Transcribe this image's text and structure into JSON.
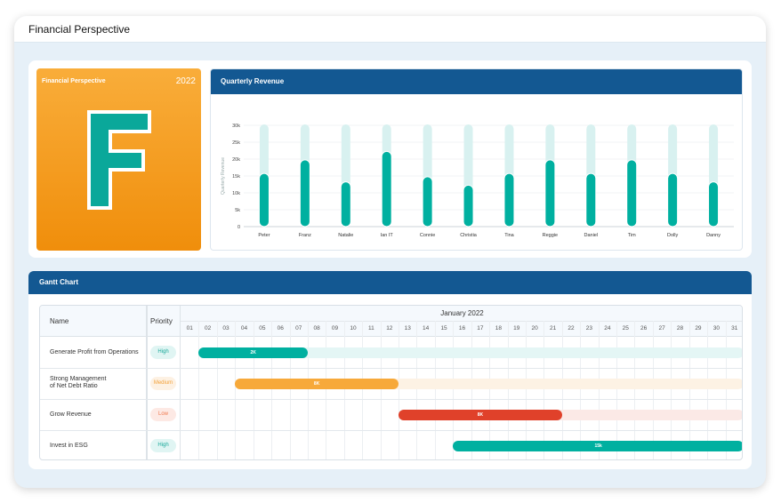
{
  "window": {
    "title": "Financial Perspective"
  },
  "logo_card": {
    "title": "Financial Perspective",
    "year": "2022",
    "letter": "F",
    "color": "#f5a020"
  },
  "revenue_panel": {
    "title": "Quarterly Revenue"
  },
  "chart_data": {
    "type": "bar",
    "title": "",
    "xlabel": "",
    "ylabel": "Quarterly Revenue",
    "ylim": [
      0,
      30000
    ],
    "yticks": [
      "0",
      "5k",
      "10k",
      "15k",
      "20k",
      "25k",
      "30k"
    ],
    "categories": [
      "Peter",
      "Franz",
      "Natalie",
      "Ian IT",
      "Connie",
      "Christia",
      "Tina",
      "Reggie",
      "Daniel",
      "Tim",
      "Dolly",
      "Danny"
    ],
    "values": [
      15500,
      19500,
      13000,
      22000,
      14500,
      12000,
      15500,
      19500,
      15500,
      19500,
      15500,
      13000
    ],
    "bar_color": "#00b0a0",
    "track_color": "#d8f1f0",
    "grid": true
  },
  "gantt": {
    "title": "Gantt Chart",
    "name_header": "Name",
    "priority_header": "Priority",
    "month": "January 2022",
    "days": [
      "01",
      "02",
      "03",
      "04",
      "05",
      "06",
      "07",
      "08",
      "09",
      "10",
      "11",
      "12",
      "13",
      "14",
      "15",
      "16",
      "17",
      "18",
      "19",
      "20",
      "21",
      "22",
      "23",
      "24",
      "25",
      "26",
      "27",
      "28",
      "29",
      "30",
      "31"
    ],
    "rows": [
      {
        "name": "Generate Profit from Operations",
        "priority": "High",
        "label": "2K",
        "start": 2,
        "end": 7,
        "color": "#00b0a0",
        "track": "#e4f6f5",
        "pill_bg": "#e0f5f3",
        "pill_fg": "#1aa89a"
      },
      {
        "name": "Strong Management of Net Debt Ratio",
        "priority": "Medium",
        "label": "8K",
        "start": 4,
        "end": 12,
        "color": "#f7a93a",
        "track": "#fdf2e4",
        "pill_bg": "#fdf1e3",
        "pill_fg": "#f2a13a"
      },
      {
        "name": "Grow Revenue",
        "priority": "Low",
        "label": "8K",
        "start": 13,
        "end": 21,
        "color": "#e0412a",
        "track": "#fbe9e6",
        "pill_bg": "#fde9e4",
        "pill_fg": "#f07a50"
      },
      {
        "name": "Invest in ESG",
        "priority": "High",
        "label": "15k",
        "start": 16,
        "end": 31,
        "color": "#00b0a0",
        "track": "#e4f6f5",
        "pill_bg": "#e0f5f3",
        "pill_fg": "#1aa89a"
      }
    ]
  }
}
